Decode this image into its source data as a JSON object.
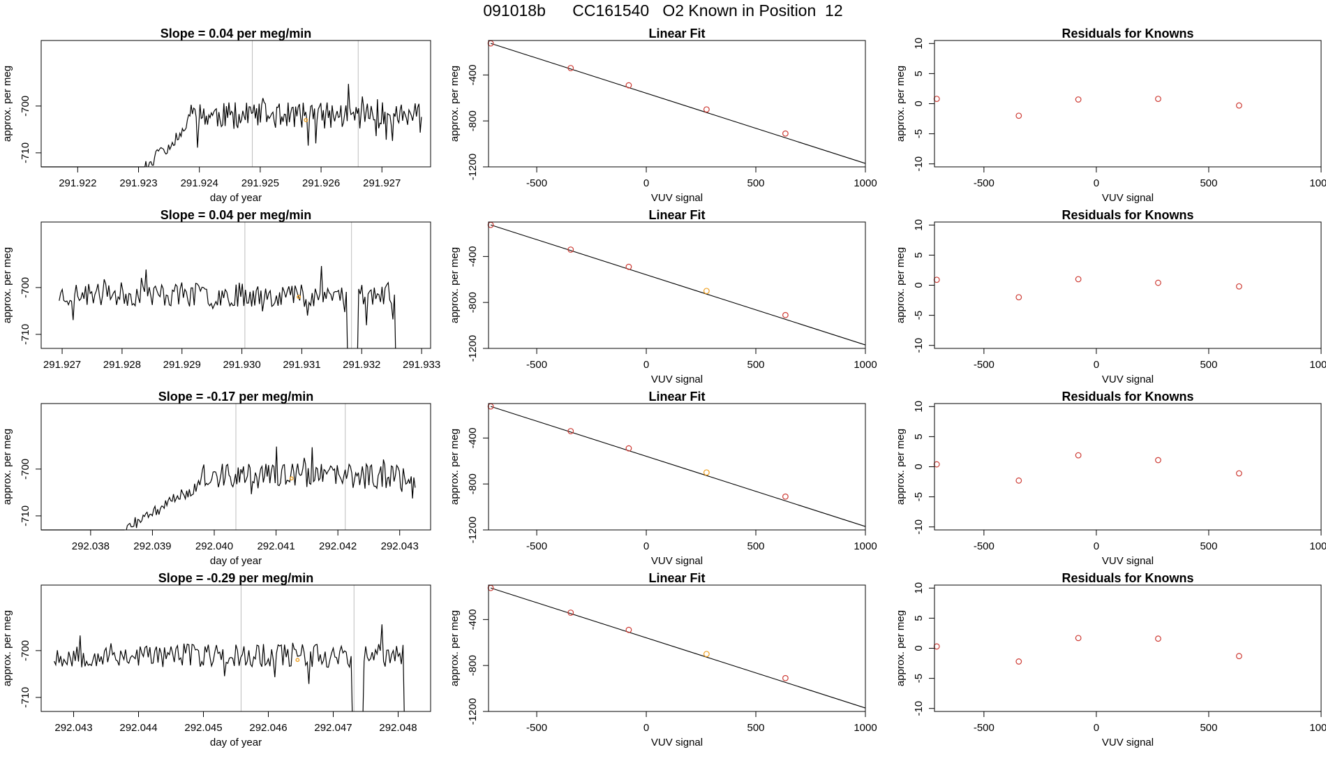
{
  "page_title": "091018b      CC161540   O2 Known in Position  12",
  "colors": {
    "line": "#000000",
    "point": "#cd3a33",
    "highlight": "#f0a020",
    "vline": "#bdbdbd"
  },
  "chart_data": [
    {
      "type": "line",
      "panel": "timeseries",
      "row": 0,
      "title": "Slope =  0.04  per meg/min",
      "xlabel": "day of year",
      "ylabel": "approx. per meg",
      "xlim": [
        291.9214,
        291.9278
      ],
      "ylim": [
        -713,
        -686
      ],
      "xticks": [
        "291.922",
        "291.923",
        "291.924",
        "291.925",
        "291.926",
        "291.927"
      ],
      "yticks": [
        "-700",
        "-710"
      ],
      "xstart": 291.9231,
      "xend": 291.92765,
      "ramp": {
        "x0": 291.9231,
        "y0": -713,
        "x1": 291.9238,
        "y1": -705
      },
      "level": -702,
      "noise": 2.8,
      "seed": 11,
      "vlines": [
        291.92487,
        291.92661
      ],
      "highlight": {
        "x": 291.92575,
        "y": -703
      },
      "drops": []
    },
    {
      "type": "line",
      "panel": "timeseries",
      "row": 1,
      "title": "Slope =  0.04  per meg/min",
      "xlabel": "",
      "ylabel": "approx. per meg",
      "xlim": [
        291.92665,
        291.93315
      ],
      "ylim": [
        -713,
        -686
      ],
      "xticks": [
        "291.927",
        "291.928",
        "291.929",
        "291.930",
        "291.931",
        "291.932",
        "291.933"
      ],
      "yticks": [
        "-700",
        "-710"
      ],
      "xstart": 291.92695,
      "xend": 291.93265,
      "ramp": null,
      "level": -701.5,
      "noise": 2.6,
      "seed": 23,
      "vlines": [
        291.93005,
        291.93183
      ],
      "highlight": {
        "x": 291.93095,
        "y": -702
      },
      "drops": [
        {
          "x0": 291.93175,
          "x1": 291.93195
        },
        {
          "x0": 291.93255,
          "x1": 291.93268
        }
      ]
    },
    {
      "type": "line",
      "panel": "timeseries",
      "row": 2,
      "title": "Slope =  -0.17  per meg/min",
      "xlabel": "day of year",
      "ylabel": "approx. per meg",
      "xlim": [
        292.0372,
        292.0435
      ],
      "ylim": [
        -713,
        -686
      ],
      "xticks": [
        "292.038",
        "292.039",
        "292.040",
        "292.041",
        "292.042",
        "292.043"
      ],
      "yticks": [
        "-700",
        "-710"
      ],
      "xstart": 292.03855,
      "xend": 292.04325,
      "ramp": {
        "x0": 292.03855,
        "y0": -713,
        "x1": 292.0398,
        "y1": -703
      },
      "level": -701.5,
      "noise": 2.7,
      "seed": 37,
      "vlines": [
        292.04035,
        292.04212
      ],
      "highlight": {
        "x": 292.04125,
        "y": -702
      },
      "drops": []
    },
    {
      "type": "line",
      "panel": "timeseries",
      "row": 3,
      "title": "Slope =  -0.29  per meg/min",
      "xlabel": "day of year",
      "ylabel": "approx. per meg",
      "xlim": [
        292.0425,
        292.0485
      ],
      "ylim": [
        -713,
        -686
      ],
      "xticks": [
        "292.043",
        "292.044",
        "292.045",
        "292.046",
        "292.047",
        "292.048"
      ],
      "yticks": [
        "-700",
        "-710"
      ],
      "xstart": 292.0427,
      "xend": 292.0482,
      "ramp": null,
      "level": -701,
      "noise": 2.6,
      "seed": 53,
      "vlines": [
        292.04558,
        292.04732
      ],
      "highlight": {
        "x": 292.04645,
        "y": -702
      },
      "drops": [
        {
          "x0": 292.04728,
          "x1": 292.04745
        },
        {
          "x0": 292.04808,
          "x1": 292.0482
        }
      ]
    },
    {
      "type": "scatter",
      "panel": "fit",
      "row": 0,
      "title": "Linear Fit",
      "xlabel": "VUV signal",
      "ylabel": "approx. per meg",
      "xlim": [
        -720,
        1000
      ],
      "ylim": [
        -1200,
        -100
      ],
      "xticks": [
        -500,
        0,
        500,
        1000
      ],
      "yticks": [
        -400,
        -800,
        -1200
      ],
      "line": {
        "x0": -710,
        "y0": -125,
        "x1": 1000,
        "y1": -1170
      },
      "points": [
        {
          "x": -710,
          "y": -125
        },
        {
          "x": -345,
          "y": -340
        },
        {
          "x": -80,
          "y": -490
        },
        {
          "x": 275,
          "y": -700
        },
        {
          "x": 635,
          "y": -910
        }
      ],
      "highlight_index": null
    },
    {
      "type": "scatter",
      "panel": "fit",
      "row": 1,
      "title": "Linear Fit",
      "xlabel": "VUV signal",
      "ylabel": "approx. per meg",
      "xlim": [
        -720,
        1000
      ],
      "ylim": [
        -1200,
        -100
      ],
      "xticks": [
        -500,
        0,
        500,
        1000
      ],
      "yticks": [
        -400,
        -800,
        -1200
      ],
      "line": {
        "x0": -710,
        "y0": -125,
        "x1": 1000,
        "y1": -1170
      },
      "points": [
        {
          "x": -710,
          "y": -125
        },
        {
          "x": -345,
          "y": -340
        },
        {
          "x": -80,
          "y": -490
        },
        {
          "x": 275,
          "y": -700
        },
        {
          "x": 635,
          "y": -910
        }
      ],
      "highlight_index": 3
    },
    {
      "type": "scatter",
      "panel": "fit",
      "row": 2,
      "title": "Linear Fit",
      "xlabel": "VUV signal",
      "ylabel": "approx. per meg",
      "xlim": [
        -720,
        1000
      ],
      "ylim": [
        -1200,
        -100
      ],
      "xticks": [
        -500,
        0,
        500,
        1000
      ],
      "yticks": [
        -400,
        -800,
        -1200
      ],
      "line": {
        "x0": -710,
        "y0": -125,
        "x1": 1000,
        "y1": -1170
      },
      "points": [
        {
          "x": -710,
          "y": -125
        },
        {
          "x": -345,
          "y": -340
        },
        {
          "x": -80,
          "y": -490
        },
        {
          "x": 275,
          "y": -700
        },
        {
          "x": 635,
          "y": -910
        }
      ],
      "highlight_index": 3
    },
    {
      "type": "scatter",
      "panel": "fit",
      "row": 3,
      "title": "Linear Fit",
      "xlabel": "VUV signal",
      "ylabel": "approx. per meg",
      "xlim": [
        -720,
        1000
      ],
      "ylim": [
        -1200,
        -100
      ],
      "xticks": [
        -500,
        0,
        500,
        1000
      ],
      "yticks": [
        -400,
        -800,
        -1200
      ],
      "line": {
        "x0": -710,
        "y0": -125,
        "x1": 1000,
        "y1": -1170
      },
      "points": [
        {
          "x": -710,
          "y": -125
        },
        {
          "x": -345,
          "y": -340
        },
        {
          "x": -80,
          "y": -490
        },
        {
          "x": 275,
          "y": -700
        },
        {
          "x": 635,
          "y": -910
        }
      ],
      "highlight_index": 3
    },
    {
      "type": "scatter",
      "panel": "resid",
      "row": 0,
      "title": "Residuals for Knowns",
      "xlabel": "VUV signal",
      "ylabel": "approx. per meg",
      "xlim": [
        -720,
        1000
      ],
      "ylim": [
        -10.5,
        10.5
      ],
      "xticks": [
        -500,
        0,
        500,
        1000
      ],
      "yticks": [
        10,
        5,
        0,
        -5,
        -10
      ],
      "points": [
        {
          "x": -710,
          "y": 0.8
        },
        {
          "x": -345,
          "y": -2.0
        },
        {
          "x": -80,
          "y": 0.7
        },
        {
          "x": 275,
          "y": 0.8
        },
        {
          "x": 635,
          "y": -0.3
        }
      ]
    },
    {
      "type": "scatter",
      "panel": "resid",
      "row": 1,
      "title": "Residuals for Knowns",
      "xlabel": "VUV signal",
      "ylabel": "approx. per meg",
      "xlim": [
        -720,
        1000
      ],
      "ylim": [
        -10.5,
        10.5
      ],
      "xticks": [
        -500,
        0,
        500,
        1000
      ],
      "yticks": [
        10,
        5,
        0,
        -5,
        -10
      ],
      "points": [
        {
          "x": -710,
          "y": 0.9
        },
        {
          "x": -345,
          "y": -2.0
        },
        {
          "x": -80,
          "y": 1.0
        },
        {
          "x": 275,
          "y": 0.4
        },
        {
          "x": 635,
          "y": -0.2
        }
      ]
    },
    {
      "type": "scatter",
      "panel": "resid",
      "row": 2,
      "title": "Residuals for Knowns",
      "xlabel": "VUV signal",
      "ylabel": "approx. per meg",
      "xlim": [
        -720,
        1000
      ],
      "ylim": [
        -10.5,
        10.5
      ],
      "xticks": [
        -500,
        0,
        500,
        1000
      ],
      "yticks": [
        10,
        5,
        0,
        -5,
        -10
      ],
      "points": [
        {
          "x": -710,
          "y": 0.4
        },
        {
          "x": -345,
          "y": -2.3
        },
        {
          "x": -80,
          "y": 1.9
        },
        {
          "x": 275,
          "y": 1.1
        },
        {
          "x": 635,
          "y": -1.1
        }
      ]
    },
    {
      "type": "scatter",
      "panel": "resid",
      "row": 3,
      "title": "Residuals for Knowns",
      "xlabel": "VUV signal",
      "ylabel": "approx. per meg",
      "xlim": [
        -720,
        1000
      ],
      "ylim": [
        -10.5,
        10.5
      ],
      "xticks": [
        -500,
        0,
        500,
        1000
      ],
      "yticks": [
        10,
        5,
        0,
        -5,
        -10
      ],
      "points": [
        {
          "x": -710,
          "y": 0.3
        },
        {
          "x": -345,
          "y": -2.2
        },
        {
          "x": -80,
          "y": 1.7
        },
        {
          "x": 275,
          "y": 1.6
        },
        {
          "x": 635,
          "y": -1.3
        }
      ]
    }
  ]
}
